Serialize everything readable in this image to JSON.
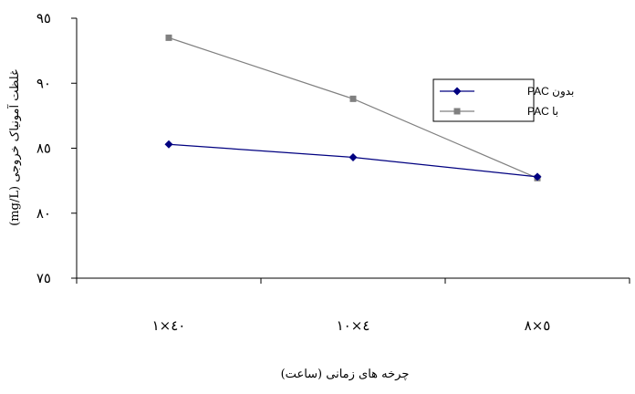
{
  "chart_data": {
    "type": "line",
    "categories": [
      "۱×٤٠",
      "٤×١٠",
      "٥×٨"
    ],
    "series": [
      {
        "name": "بدون PAC",
        "values": [
          85.3,
          84.3,
          82.8
        ],
        "color": "#000080",
        "marker": "diamond"
      },
      {
        "name": "با PAC",
        "values": [
          93.5,
          88.8,
          82.7
        ],
        "color": "#808080",
        "marker": "square"
      }
    ],
    "ylim": [
      75,
      95
    ],
    "yticks": [
      75,
      80,
      85,
      90,
      95
    ],
    "ytick_labels": [
      "٧٥",
      "٨٠",
      "٨٥",
      "٩٠",
      "٩٥"
    ],
    "xlabel": "چرخه های زمانی (ساعت)",
    "ylabel": "غلظت آمونیاک خروجی (mg/L)",
    "legend_position": "right-upper",
    "grid": false
  }
}
